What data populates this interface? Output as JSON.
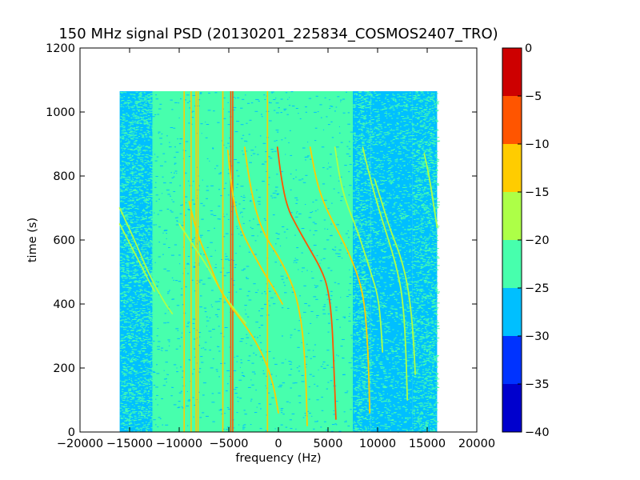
{
  "chart_data": {
    "type": "heatmap",
    "title": "150 MHz signal PSD (20130201_225834_COSMOS2407_TRO)",
    "xlabel": "frequency (Hz)",
    "ylabel": "time (s)",
    "xlim": [
      -20000,
      20000
    ],
    "ylim": [
      0,
      1200
    ],
    "x_ticks": [
      -20000,
      -15000,
      -10000,
      -5000,
      0,
      5000,
      10000,
      15000,
      20000
    ],
    "x_tick_labels": [
      "−20000",
      "−15000",
      "−10000",
      "−5000",
      "0",
      "5000",
      "10000",
      "15000",
      "20000"
    ],
    "y_ticks": [
      0,
      200,
      400,
      600,
      800,
      1000,
      1200
    ],
    "y_tick_labels": [
      "0",
      "200",
      "400",
      "600",
      "800",
      "1000",
      "1200"
    ],
    "data_extent": {
      "x": [
        -16000,
        16000
      ],
      "y": [
        0,
        1065
      ]
    },
    "grid": false,
    "colorbar": {
      "levels": [
        -40,
        -35,
        -30,
        -25,
        -20,
        -15,
        -10,
        -5,
        0
      ],
      "tick_labels": [
        "−40",
        "−35",
        "−30",
        "−25",
        "−20",
        "−15",
        "−10",
        "−5",
        "0"
      ],
      "colors": [
        "#0000cd",
        "#0033ff",
        "#00bfff",
        "#47ffad",
        "#adff47",
        "#ffcc00",
        "#ff5500",
        "#cd0000"
      ]
    },
    "background_regions": [
      {
        "x": [
          -16000,
          -12700
        ],
        "level": "-30..-20"
      },
      {
        "x": [
          -12700,
          7500
        ],
        "level": "-25..-20"
      },
      {
        "x": [
          7500,
          9300
        ],
        "level": "-30..-20"
      },
      {
        "x": [
          9300,
          13500
        ],
        "level": "-30..-25"
      },
      {
        "x": [
          13500,
          16000
        ],
        "level": "-30..-20"
      }
    ],
    "vertical_lines": [
      {
        "freq": -9500,
        "level": "-15..-10"
      },
      {
        "freq": -8800,
        "level": "-15..-10"
      },
      {
        "freq": -8300,
        "level": "-15..-10"
      },
      {
        "freq": -8100,
        "level": "-15..-10"
      },
      {
        "freq": -5600,
        "level": "-15..-10"
      },
      {
        "freq": -4800,
        "level": "-10..-5"
      },
      {
        "freq": -4600,
        "level": "-10..-5"
      },
      {
        "freq": -1100,
        "level": "-15..-10"
      }
    ],
    "doppler_traces": [
      {
        "level": "-20..-15",
        "points": [
          [
            -16000,
            650
          ],
          [
            -15000,
            590
          ],
          [
            -14000,
            530
          ],
          [
            -13200,
            480
          ],
          [
            -12500,
            440
          ]
        ]
      },
      {
        "level": "-20..-15",
        "points": [
          [
            -16000,
            700
          ],
          [
            -14500,
            600
          ],
          [
            -13000,
            490
          ],
          [
            -11600,
            410
          ],
          [
            -10700,
            370
          ]
        ]
      },
      {
        "level": "-20..-15",
        "points": [
          [
            -10000,
            650
          ],
          [
            -8500,
            580
          ],
          [
            -7000,
            510
          ],
          [
            -5800,
            440
          ],
          [
            -4600,
            390
          ],
          [
            -3300,
            340
          ]
        ]
      },
      {
        "level": "-15..-10",
        "points": [
          [
            -5100,
            880
          ],
          [
            -4700,
            760
          ],
          [
            -4300,
            690
          ],
          [
            -3600,
            620
          ],
          [
            -2600,
            560
          ],
          [
            -1500,
            500
          ],
          [
            -300,
            440
          ],
          [
            400,
            400
          ]
        ]
      },
      {
        "level": "-15..-10",
        "points": [
          [
            -3400,
            890
          ],
          [
            -2900,
            780
          ],
          [
            -2200,
            680
          ],
          [
            -1300,
            610
          ],
          [
            0,
            550
          ],
          [
            1300,
            470
          ],
          [
            2000,
            400
          ],
          [
            2500,
            300
          ],
          [
            2800,
            150
          ],
          [
            2900,
            20
          ]
        ]
      },
      {
        "level": "-10..-5",
        "points": [
          [
            -100,
            890
          ],
          [
            300,
            790
          ],
          [
            900,
            700
          ],
          [
            1900,
            640
          ],
          [
            3000,
            580
          ],
          [
            4300,
            510
          ],
          [
            5000,
            450
          ],
          [
            5400,
            350
          ],
          [
            5600,
            200
          ],
          [
            5800,
            40
          ]
        ]
      },
      {
        "level": "-15..-10",
        "points": [
          [
            -9000,
            720
          ],
          [
            -8200,
            620
          ],
          [
            -7000,
            530
          ],
          [
            -6000,
            450
          ],
          [
            -5000,
            400
          ],
          [
            -4000,
            360
          ],
          [
            -2600,
            300
          ],
          [
            -1400,
            230
          ],
          [
            -500,
            150
          ],
          [
            0,
            60
          ]
        ]
      },
      {
        "level": "-15..-10",
        "points": [
          [
            3200,
            890
          ],
          [
            3800,
            790
          ],
          [
            4500,
            720
          ],
          [
            5600,
            650
          ],
          [
            6800,
            580
          ],
          [
            7900,
            500
          ],
          [
            8600,
            420
          ],
          [
            8900,
            320
          ],
          [
            9100,
            200
          ],
          [
            9200,
            60
          ]
        ]
      },
      {
        "level": "-20..-15",
        "points": [
          [
            5700,
            890
          ],
          [
            6200,
            790
          ],
          [
            6800,
            720
          ],
          [
            7700,
            650
          ],
          [
            8600,
            570
          ],
          [
            9400,
            490
          ],
          [
            10000,
            430
          ],
          [
            10300,
            350
          ],
          [
            10500,
            250
          ]
        ]
      },
      {
        "level": "-20..-15",
        "points": [
          [
            8500,
            890
          ],
          [
            9200,
            800
          ],
          [
            9900,
            720
          ],
          [
            10700,
            640
          ],
          [
            11500,
            560
          ],
          [
            12100,
            490
          ],
          [
            12500,
            420
          ],
          [
            12800,
            300
          ],
          [
            13000,
            100
          ]
        ]
      },
      {
        "level": "-20..-15",
        "points": [
          [
            9700,
            790
          ],
          [
            10400,
            720
          ],
          [
            11300,
            630
          ],
          [
            12200,
            560
          ],
          [
            12900,
            480
          ],
          [
            13300,
            400
          ],
          [
            13600,
            300
          ],
          [
            13800,
            180
          ]
        ]
      },
      {
        "level": "-20..-15",
        "points": [
          [
            14700,
            870
          ],
          [
            15200,
            800
          ],
          [
            15700,
            700
          ],
          [
            16000,
            640
          ]
        ]
      }
    ]
  }
}
